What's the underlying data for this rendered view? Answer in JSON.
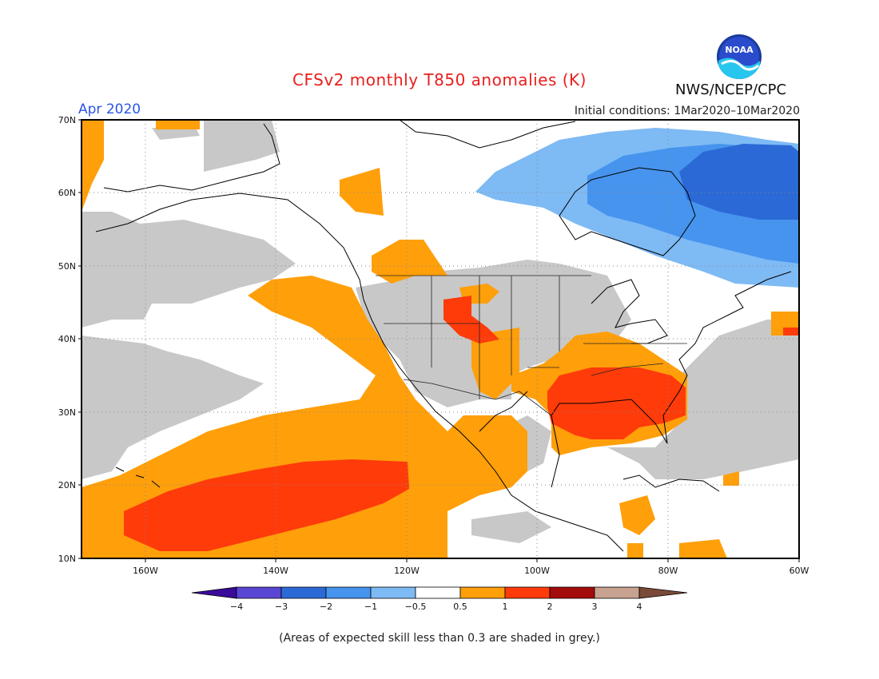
{
  "header": {
    "title": "CFSv2 monthly T850 anomalies (K)",
    "period": "Apr 2020",
    "agency": "NWS/NCEP/CPC",
    "initial_conditions": "Initial conditions: 1Mar2020–10Mar2020",
    "logo_text": "NOAA"
  },
  "axes": {
    "lat_labels": [
      "70N",
      "60N",
      "50N",
      "40N",
      "30N",
      "20N",
      "10N"
    ],
    "lon_labels": [
      "160W",
      "140W",
      "120W",
      "100W",
      "80W",
      "60W"
    ]
  },
  "colorbar": {
    "labels": [
      "−4",
      "−3",
      "−2",
      "−1",
      "−0.5",
      "0.5",
      "1",
      "2",
      "3",
      "4"
    ],
    "colors": [
      "#3a0a9a",
      "#5a46d4",
      "#2b6ad6",
      "#4694ee",
      "#7ebaf4",
      "#ffffff",
      "#ff9f0a",
      "#ff3b0a",
      "#a40b0b",
      "#c8a290",
      "#7a4a38"
    ]
  },
  "note": "(Areas of expected skill less than 0.3 are shaded in grey.)"
}
